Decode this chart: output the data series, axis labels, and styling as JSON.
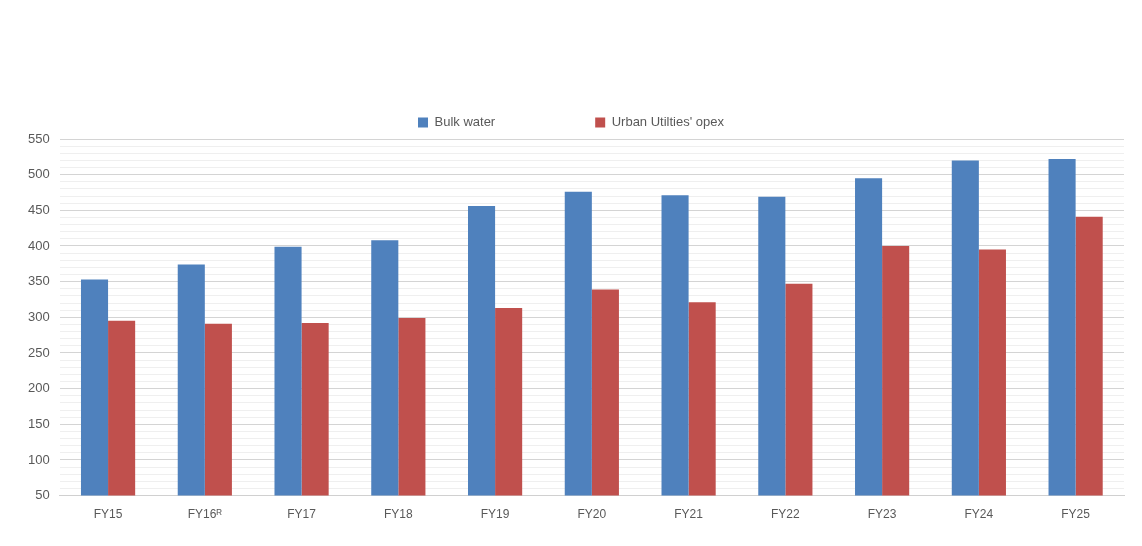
{
  "chart_data": {
    "type": "bar",
    "categories": [
      "FY15",
      "FY16ᴿ",
      "FY17",
      "FY18",
      "FY19",
      "FY20",
      "FY21",
      "FY22",
      "FY23",
      "FY24",
      "FY25"
    ],
    "series": [
      {
        "name": "Bulk water",
        "color": "#4f81bd",
        "values": [
          353,
          374,
          399,
          408,
          456,
          476,
          471,
          469,
          495,
          520,
          522
        ]
      },
      {
        "name": "Urban Utilties' opex",
        "color": "#c0504d",
        "values": [
          295,
          291,
          292,
          299,
          313,
          339,
          321,
          347,
          400,
          395,
          441
        ]
      }
    ],
    "ylim": [
      50,
      550
    ],
    "yticks": [
      50,
      {
        "value": 60,
        "label": null
      },
      {
        "value": 70,
        "label": null
      },
      {
        "value": 80,
        "label": null
      },
      {
        "value": 90,
        "label": null
      },
      100,
      {
        "value": 110,
        "label": null
      },
      {
        "value": 120,
        "label": null
      },
      {
        "value": 130,
        "label": null
      },
      {
        "value": 140,
        "label": null
      },
      150,
      {
        "value": 160,
        "label": null
      },
      {
        "value": 170,
        "label": null
      },
      {
        "value": 180,
        "label": null
      },
      {
        "value": 190,
        "label": null
      },
      200,
      {
        "value": 210,
        "label": null
      },
      {
        "value": 220,
        "label": null
      },
      {
        "value": 230,
        "label": null
      },
      {
        "value": 240,
        "label": null
      },
      250,
      {
        "value": 260,
        "label": null
      },
      {
        "value": 270,
        "label": null
      },
      {
        "value": 280,
        "label": null
      },
      {
        "value": 290,
        "label": null
      },
      300,
      {
        "value": 310,
        "label": null
      },
      {
        "value": 320,
        "label": null
      },
      {
        "value": 330,
        "label": null
      },
      {
        "value": 340,
        "label": null
      },
      350,
      {
        "value": 360,
        "label": null
      },
      {
        "value": 370,
        "label": null
      },
      {
        "value": 380,
        "label": null
      },
      {
        "value": 390,
        "label": null
      },
      400,
      {
        "value": 410,
        "label": null
      },
      {
        "value": 420,
        "label": null
      },
      {
        "value": 430,
        "label": null
      },
      {
        "value": 440,
        "label": null
      },
      450,
      {
        "value": 460,
        "label": null
      },
      {
        "value": 470,
        "label": null
      },
      {
        "value": 480,
        "label": null
      },
      {
        "value": 490,
        "label": null
      },
      500,
      {
        "value": 510,
        "label": null
      },
      {
        "value": 520,
        "label": null
      },
      {
        "value": 530,
        "label": null
      },
      {
        "value": 540,
        "label": null
      },
      550
    ],
    "grid": "y",
    "legend": "top"
  }
}
